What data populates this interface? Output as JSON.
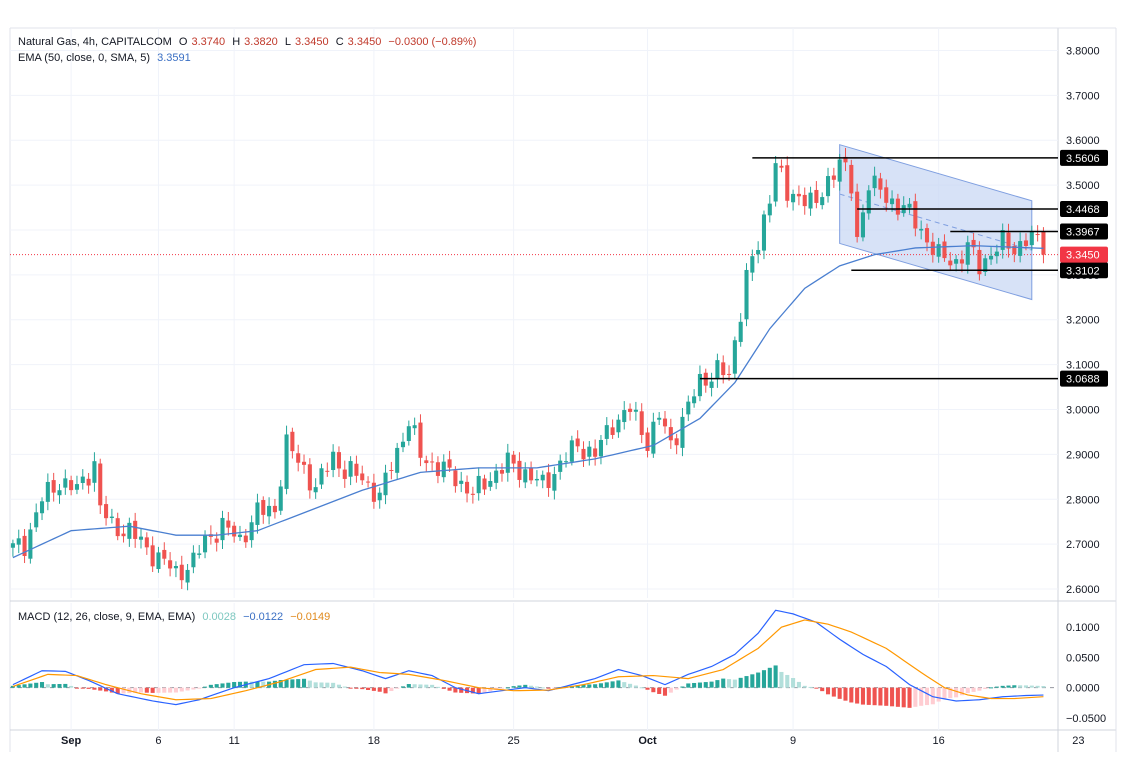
{
  "header": {
    "symbol": "Natural Gas, 4h, CAPITALCOM",
    "ohlc": {
      "o_label": "O",
      "o": "3.3740",
      "h_label": "H",
      "h": "3.3820",
      "l_label": "L",
      "l": "3.3450",
      "c_label": "C",
      "c": "3.3450",
      "change": "−0.0300 (−0.89%)"
    },
    "ema_label": "EMA (50, close, 0, SMA, 5)",
    "ema_value": "3.3591",
    "macd_label": "MACD (12, 26, close, 9, EMA, EMA)",
    "macd_hist": "0.0028",
    "macd_line": "−0.0122",
    "macd_signal": "−0.0149"
  },
  "colors": {
    "up": "#26a69a",
    "down": "#ef5350",
    "ema": "#4a7fd0",
    "channel_fill": "#c6d6f4",
    "channel_line": "#7f9fe0",
    "level": "#000000",
    "last_price": "#f23645",
    "macd": "#2962ff",
    "signal": "#ff9800",
    "hist_up": "#26a69a",
    "hist_up_light": "#b2dfdb",
    "hist_down": "#ef5350",
    "hist_down_light": "#ffcdd2"
  },
  "chart_data": {
    "type": "candlestick",
    "interval": "4h",
    "price_axis": {
      "ylim": [
        2.58,
        3.85
      ],
      "ticks": [
        "3.8000",
        "3.7000",
        "3.6000",
        "3.5000",
        "3.4000",
        "3.3000",
        "3.2000",
        "3.1000",
        "3.0000",
        "2.9000",
        "2.8000",
        "2.7000",
        "2.6000"
      ]
    },
    "macd_axis": {
      "ylim": [
        -0.07,
        0.14
      ],
      "ticks": [
        "0.1000",
        "0.0500",
        "0.0000",
        "−0.0500"
      ]
    },
    "time_axis": {
      "bars": 180,
      "labels": [
        {
          "text": "Sep",
          "bar": 10,
          "bold": true
        },
        {
          "text": "6",
          "bar": 25
        },
        {
          "text": "11",
          "bar": 38
        },
        {
          "text": "18",
          "bar": 62
        },
        {
          "text": "25",
          "bar": 86
        },
        {
          "text": "Oct",
          "bar": 109,
          "bold": true
        },
        {
          "text": "9",
          "bar": 134
        },
        {
          "text": "16",
          "bar": 159
        },
        {
          "text": "23",
          "bar": 183
        }
      ]
    },
    "levels": [
      {
        "value": 3.5606,
        "label": "3.5606",
        "from_bar": 127
      },
      {
        "value": 3.4468,
        "label": "3.4468",
        "from_bar": 145
      },
      {
        "value": 3.3967,
        "label": "3.3967",
        "from_bar": 161
      },
      {
        "value": 3.3102,
        "label": "3.3102",
        "from_bar": 144
      },
      {
        "value": 3.0688,
        "label": "3.0688",
        "from_bar": 118
      }
    ],
    "last_price": {
      "value": 3.345,
      "label": "3.3450"
    },
    "channel": {
      "start_bar": 142,
      "end_bar": 175,
      "upper": [
        3.59,
        3.465
      ],
      "lower": [
        3.37,
        3.245
      ]
    },
    "ohlc_anchors": [
      [
        0,
        2.69
      ],
      [
        2,
        2.7
      ],
      [
        5,
        2.8
      ],
      [
        8,
        2.84
      ],
      [
        11,
        2.82
      ],
      [
        14,
        2.88
      ],
      [
        15,
        2.78
      ],
      [
        17,
        2.74
      ],
      [
        20,
        2.73
      ],
      [
        23,
        2.69
      ],
      [
        26,
        2.66
      ],
      [
        28,
        2.635
      ],
      [
        31,
        2.66
      ],
      [
        33,
        2.71
      ],
      [
        36,
        2.74
      ],
      [
        39,
        2.71
      ],
      [
        42,
        2.77
      ],
      [
        45,
        2.78
      ],
      [
        47,
        2.92
      ],
      [
        50,
        2.87
      ],
      [
        52,
        2.82
      ],
      [
        55,
        2.9
      ],
      [
        57,
        2.86
      ],
      [
        60,
        2.85
      ],
      [
        63,
        2.8
      ],
      [
        65,
        2.88
      ],
      [
        68,
        2.97
      ],
      [
        70,
        2.9
      ],
      [
        73,
        2.87
      ],
      [
        76,
        2.85
      ],
      [
        79,
        2.81
      ],
      [
        82,
        2.85
      ],
      [
        85,
        2.88
      ],
      [
        88,
        2.86
      ],
      [
        91,
        2.83
      ],
      [
        94,
        2.88
      ],
      [
        97,
        2.92
      ],
      [
        100,
        2.9
      ],
      [
        103,
        2.97
      ],
      [
        106,
        3.0
      ],
      [
        109,
        2.93
      ],
      [
        111,
        2.985
      ],
      [
        113,
        2.92
      ],
      [
        115,
        2.98
      ],
      [
        118,
        3.06
      ],
      [
        121,
        3.09
      ],
      [
        123,
        3.07
      ],
      [
        124,
        3.15
      ],
      [
        126,
        3.3
      ],
      [
        128,
        3.36
      ],
      [
        130,
        3.48
      ],
      [
        131,
        3.56
      ],
      [
        133,
        3.47
      ],
      [
        136,
        3.48
      ],
      [
        138,
        3.45
      ],
      [
        140,
        3.51
      ],
      [
        142,
        3.56
      ],
      [
        144,
        3.49
      ],
      [
        145,
        3.38
      ],
      [
        147,
        3.51
      ],
      [
        150,
        3.47
      ],
      [
        153,
        3.45
      ],
      [
        156,
        3.4
      ],
      [
        159,
        3.34
      ],
      [
        162,
        3.33
      ],
      [
        164,
        3.36
      ],
      [
        166,
        3.32
      ],
      [
        168,
        3.35
      ],
      [
        170,
        3.37
      ],
      [
        172,
        3.36
      ],
      [
        174,
        3.38
      ],
      [
        176,
        3.375
      ],
      [
        177,
        3.345
      ]
    ],
    "ema_anchors": [
      [
        0,
        2.67
      ],
      [
        10,
        2.73
      ],
      [
        20,
        2.74
      ],
      [
        28,
        2.72
      ],
      [
        35,
        2.72
      ],
      [
        42,
        2.73
      ],
      [
        50,
        2.77
      ],
      [
        60,
        2.82
      ],
      [
        70,
        2.86
      ],
      [
        80,
        2.87
      ],
      [
        90,
        2.87
      ],
      [
        100,
        2.89
      ],
      [
        110,
        2.92
      ],
      [
        118,
        2.98
      ],
      [
        124,
        3.06
      ],
      [
        130,
        3.18
      ],
      [
        136,
        3.27
      ],
      [
        142,
        3.32
      ],
      [
        148,
        3.345
      ],
      [
        155,
        3.36
      ],
      [
        165,
        3.365
      ],
      [
        177,
        3.3591
      ]
    ],
    "macd_anchors": [
      [
        0,
        0.005
      ],
      [
        5,
        0.028
      ],
      [
        9,
        0.027
      ],
      [
        13,
        0.012
      ],
      [
        18,
        -0.01
      ],
      [
        24,
        -0.022
      ],
      [
        28,
        -0.028
      ],
      [
        32,
        -0.02
      ],
      [
        38,
        0.0
      ],
      [
        44,
        0.015
      ],
      [
        50,
        0.038
      ],
      [
        55,
        0.04
      ],
      [
        60,
        0.028
      ],
      [
        64,
        0.015
      ],
      [
        68,
        0.028
      ],
      [
        72,
        0.02
      ],
      [
        76,
        0.0
      ],
      [
        80,
        -0.01
      ],
      [
        84,
        -0.005
      ],
      [
        88,
        0.0
      ],
      [
        92,
        -0.005
      ],
      [
        96,
        0.005
      ],
      [
        100,
        0.015
      ],
      [
        104,
        0.03
      ],
      [
        108,
        0.02
      ],
      [
        112,
        0.005
      ],
      [
        116,
        0.022
      ],
      [
        120,
        0.035
      ],
      [
        124,
        0.055
      ],
      [
        128,
        0.09
      ],
      [
        131,
        0.128
      ],
      [
        134,
        0.122
      ],
      [
        138,
        0.108
      ],
      [
        142,
        0.08
      ],
      [
        146,
        0.055
      ],
      [
        150,
        0.035
      ],
      [
        154,
        0.005
      ],
      [
        158,
        -0.015
      ],
      [
        162,
        -0.022
      ],
      [
        166,
        -0.02
      ],
      [
        170,
        -0.015
      ],
      [
        174,
        -0.013
      ],
      [
        177,
        -0.0122
      ]
    ],
    "signal_anchors": [
      [
        0,
        0.002
      ],
      [
        6,
        0.022
      ],
      [
        11,
        0.02
      ],
      [
        16,
        0.005
      ],
      [
        22,
        -0.01
      ],
      [
        28,
        -0.02
      ],
      [
        34,
        -0.018
      ],
      [
        40,
        -0.005
      ],
      [
        46,
        0.01
      ],
      [
        52,
        0.03
      ],
      [
        58,
        0.034
      ],
      [
        63,
        0.025
      ],
      [
        68,
        0.022
      ],
      [
        74,
        0.012
      ],
      [
        80,
        0.0
      ],
      [
        86,
        -0.005
      ],
      [
        92,
        -0.004
      ],
      [
        98,
        0.005
      ],
      [
        104,
        0.018
      ],
      [
        110,
        0.02
      ],
      [
        116,
        0.015
      ],
      [
        122,
        0.03
      ],
      [
        128,
        0.065
      ],
      [
        132,
        0.1
      ],
      [
        136,
        0.112
      ],
      [
        140,
        0.105
      ],
      [
        144,
        0.092
      ],
      [
        150,
        0.065
      ],
      [
        156,
        0.025
      ],
      [
        160,
        0.0
      ],
      [
        164,
        -0.012
      ],
      [
        168,
        -0.018
      ],
      [
        172,
        -0.018
      ],
      [
        177,
        -0.0149
      ]
    ]
  }
}
